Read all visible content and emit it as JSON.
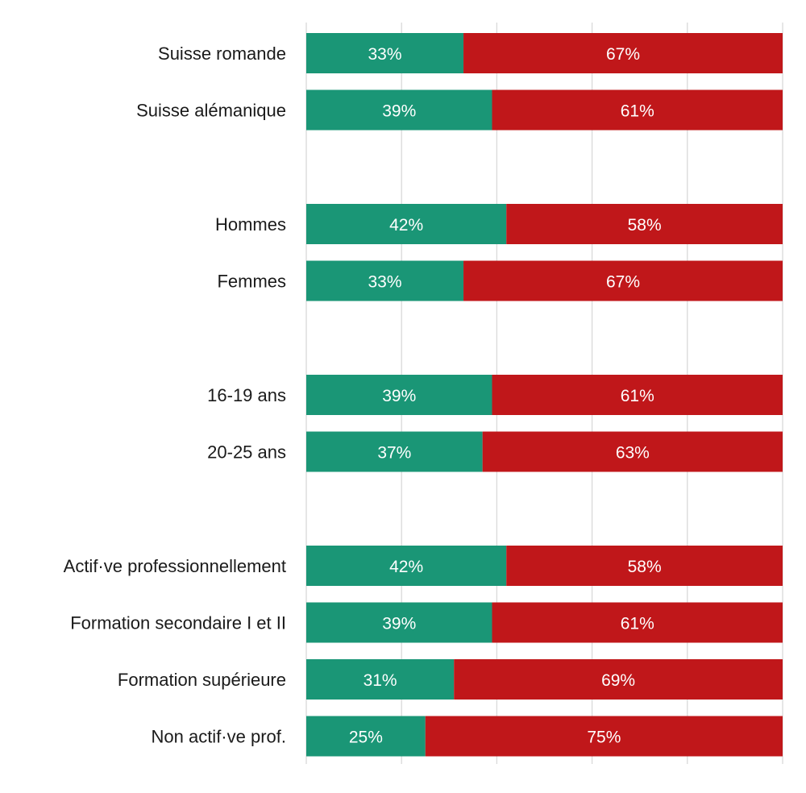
{
  "chart_data": {
    "type": "bar",
    "orientation": "horizontal",
    "stacked": true,
    "percent_stacked": true,
    "title": "",
    "xlabel": "",
    "ylabel": "",
    "xlim": [
      0,
      100
    ],
    "grid": true,
    "legend": "none",
    "colors": [
      "#1a9676",
      "#c0171a"
    ],
    "groups": [
      {
        "categories": [
          "Suisse romande",
          "Suisse alémanique"
        ],
        "values": [
          [
            33,
            67
          ],
          [
            39,
            61
          ]
        ],
        "labels": [
          [
            "33%",
            "67%"
          ],
          [
            "39%",
            "61%"
          ]
        ]
      },
      {
        "categories": [
          "Hommes",
          "Femmes"
        ],
        "values": [
          [
            42,
            58
          ],
          [
            33,
            67
          ]
        ],
        "labels": [
          [
            "42%",
            "58%"
          ],
          [
            "33%",
            "67%"
          ]
        ]
      },
      {
        "categories": [
          "16-19 ans",
          "20-25 ans"
        ],
        "values": [
          [
            39,
            61
          ],
          [
            37,
            63
          ]
        ],
        "labels": [
          [
            "39%",
            "61%"
          ],
          [
            "37%",
            "63%"
          ]
        ]
      },
      {
        "categories": [
          "Actif·ve professionnellement",
          "Formation secondaire I et II",
          "Formation supérieure",
          "Non actif·ve prof."
        ],
        "values": [
          [
            42,
            58
          ],
          [
            39,
            61
          ],
          [
            31,
            69
          ],
          [
            25,
            75
          ]
        ],
        "labels": [
          [
            "42%",
            "58%"
          ],
          [
            "39%",
            "61%"
          ],
          [
            "31%",
            "69%"
          ],
          [
            "25%",
            "75%"
          ]
        ]
      }
    ]
  }
}
